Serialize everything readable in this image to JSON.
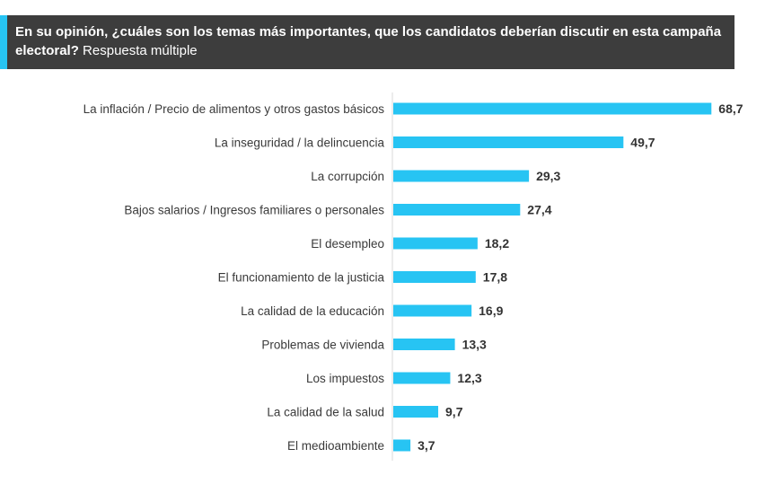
{
  "header": {
    "title_bold": "En su opinión, ¿cuáles son los temas más importantes, que los candidatos deberían discutir en esta campaña electoral?",
    "title_normal": "Respuesta múltiple"
  },
  "colors": {
    "bar": "#27c4f3",
    "header_bg": "#3d3d3d",
    "accent": "#27c4f3"
  },
  "chart_data": {
    "type": "bar",
    "orientation": "horizontal",
    "categories": [
      "La inflación / Precio de alimentos y otros gastos básicos",
      "La inseguridad / la delincuencia",
      "La corrupción",
      "Bajos salarios / Ingresos familiares o personales",
      "El desempleo",
      "El funcionamiento de la justicia",
      "La calidad de la educación",
      "Problemas de vivienda",
      "Los impuestos",
      "La calidad de la salud",
      "El medioambiente"
    ],
    "values": [
      68.7,
      49.7,
      29.3,
      27.4,
      18.2,
      17.8,
      16.9,
      13.3,
      12.3,
      9.7,
      3.7
    ],
    "value_labels": [
      "68,7",
      "49,7",
      "29,3",
      "27,4",
      "18,2",
      "17,8",
      "16,9",
      "13,3",
      "12,3",
      "9,7",
      "3,7"
    ],
    "xlim": [
      0,
      70
    ],
    "grid": false,
    "legend": "none"
  }
}
